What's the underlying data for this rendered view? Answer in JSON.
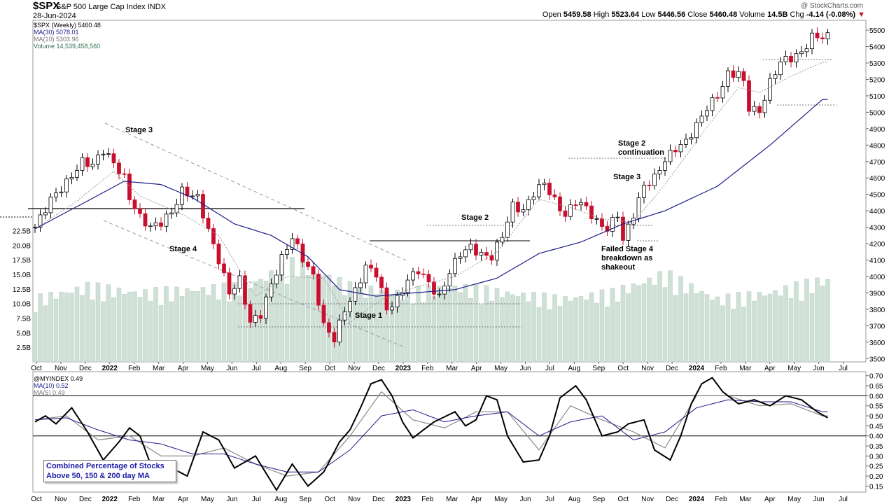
{
  "header": {
    "symbol": "$SPX",
    "name": "S&P 500 Large Cap Index",
    "exchange": "INDX",
    "date": "28-Jun-2024",
    "copyright": "@ StockCharts.com",
    "ohlc": {
      "open_label": "Open",
      "open": "5459.58",
      "high_label": "High",
      "high": "5523.64",
      "low_label": "Low",
      "low": "5446.56",
      "close_label": "Close",
      "close": "5460.48",
      "volume_label": "Volume",
      "volume": "14.5B",
      "chg_label": "Chg",
      "chg": "-4.14 (-0.08%)"
    }
  },
  "legend_main": [
    {
      "text": "$SPX (Weekly) 5460.48",
      "color": "#000000"
    },
    {
      "text": "MA(30) 5078.01",
      "color": "#1c1c8a"
    },
    {
      "text": "MA(10) 5303.96",
      "color": "#777777"
    },
    {
      "text": "Volume 14,539,458,560",
      "color": "#2e6e4e"
    }
  ],
  "legend_lower": [
    {
      "text": "@MYINDEX 0.49",
      "color": "#000000"
    },
    {
      "text": "MA(10) 0.52",
      "color": "#1c1c8a"
    },
    {
      "text": "MA(5) 0.49",
      "color": "#777777"
    }
  ],
  "annotations": [
    {
      "text": "Stage 3"
    },
    {
      "text": "Stage 4"
    },
    {
      "text": "Stage 1"
    },
    {
      "text": "Stage 2"
    },
    {
      "text": "Stage 2\ncontinuation"
    },
    {
      "text": "Stage 3"
    },
    {
      "text": "Failed Stage 4\nbreakdown as\nshakeout"
    }
  ],
  "info_box": "Combined Percentage of Stocks Above 50, 150 & 200 day MA",
  "colors": {
    "up": "#000000",
    "down": "#c8102e",
    "volume": "#cfe0d7",
    "ma30": "#1c1c8a",
    "ma10": "#999999"
  },
  "chart_data": [
    {
      "type": "candlestick",
      "title": "$SPX (Weekly)",
      "ylim": [
        3480,
        5560
      ],
      "yticks": [
        3500,
        3600,
        3700,
        3800,
        3900,
        4000,
        4100,
        4200,
        4300,
        4400,
        4500,
        4600,
        4700,
        4800,
        4900,
        5000,
        5100,
        5200,
        5300,
        5400,
        5500
      ],
      "xticks": [
        "Oct",
        "Nov",
        "Dec",
        "2022",
        "Feb",
        "Mar",
        "Apr",
        "May",
        "Jun",
        "Jul",
        "Aug",
        "Sep",
        "Oct",
        "Nov",
        "Dec",
        "2023",
        "Feb",
        "Mar",
        "Apr",
        "May",
        "Jun",
        "Jul",
        "Aug",
        "Sep",
        "Oct",
        "Nov",
        "Dec",
        "2024",
        "Feb",
        "Mar",
        "Apr",
        "May",
        "Jun",
        "Jul"
      ],
      "volume_ticks": [
        "2.5B",
        "5.0B",
        "7.5B",
        "10.0B",
        "12.5B",
        "15.0B",
        "17.5B",
        "20.0B",
        "22.5B"
      ],
      "volume_ylim_billions": [
        0,
        24
      ],
      "close_keypoints": [
        [
          0,
          4300
        ],
        [
          3,
          4470
        ],
        [
          6,
          4570
        ],
        [
          9,
          4700
        ],
        [
          11,
          4680
        ],
        [
          13,
          4770
        ],
        [
          15,
          4690
        ],
        [
          17,
          4600
        ],
        [
          18,
          4480
        ],
        [
          20,
          4360
        ],
        [
          22,
          4300
        ],
        [
          24,
          4330
        ],
        [
          26,
          4390
        ],
        [
          28,
          4520
        ],
        [
          31,
          4480
        ],
        [
          33,
          4280
        ],
        [
          35,
          4100
        ],
        [
          37,
          3900
        ],
        [
          39,
          3980
        ],
        [
          41,
          3720
        ],
        [
          43,
          3770
        ],
        [
          45,
          3950
        ],
        [
          47,
          4110
        ],
        [
          49,
          4240
        ],
        [
          51,
          4110
        ],
        [
          53,
          4000
        ],
        [
          55,
          3700
        ],
        [
          57,
          3620
        ],
        [
          59,
          3800
        ],
        [
          61,
          3910
        ],
        [
          63,
          4060
        ],
        [
          65,
          4020
        ],
        [
          67,
          3800
        ],
        [
          69,
          3860
        ],
        [
          71,
          3980
        ],
        [
          73,
          4040
        ],
        [
          75,
          3960
        ],
        [
          77,
          3870
        ],
        [
          79,
          4030
        ],
        [
          81,
          4140
        ],
        [
          83,
          4180
        ],
        [
          85,
          4130
        ],
        [
          87,
          4120
        ],
        [
          89,
          4250
        ],
        [
          91,
          4430
        ],
        [
          93,
          4400
        ],
        [
          95,
          4510
        ],
        [
          97,
          4570
        ],
        [
          99,
          4460
        ],
        [
          101,
          4370
        ],
        [
          103,
          4460
        ],
        [
          105,
          4420
        ],
        [
          107,
          4330
        ],
        [
          109,
          4290
        ],
        [
          111,
          4380
        ],
        [
          112,
          4220
        ],
        [
          114,
          4380
        ],
        [
          116,
          4550
        ],
        [
          118,
          4600
        ],
        [
          120,
          4710
        ],
        [
          122,
          4780
        ],
        [
          124,
          4820
        ],
        [
          126,
          4920
        ],
        [
          128,
          5030
        ],
        [
          130,
          5100
        ],
        [
          132,
          5230
        ],
        [
          134,
          5240
        ],
        [
          135,
          5180
        ],
        [
          136,
          5030
        ],
        [
          138,
          5000
        ],
        [
          140,
          5180
        ],
        [
          142,
          5310
        ],
        [
          144,
          5330
        ],
        [
          146,
          5360
        ],
        [
          148,
          5460
        ],
        [
          150,
          5460
        ]
      ],
      "volume_keypoints": [
        [
          0,
          10
        ],
        [
          10,
          12
        ],
        [
          20,
          11
        ],
        [
          40,
          12
        ],
        [
          50,
          16
        ],
        [
          60,
          12
        ],
        [
          70,
          11
        ],
        [
          80,
          12
        ],
        [
          90,
          11
        ],
        [
          100,
          10
        ],
        [
          110,
          11
        ],
        [
          120,
          14
        ],
        [
          130,
          10
        ],
        [
          140,
          11
        ],
        [
          150,
          13
        ]
      ],
      "ma30_keypoints": [
        [
          0,
          4290
        ],
        [
          10,
          4460
        ],
        [
          17,
          4580
        ],
        [
          24,
          4560
        ],
        [
          30,
          4480
        ],
        [
          38,
          4320
        ],
        [
          45,
          4250
        ],
        [
          52,
          4120
        ],
        [
          58,
          3920
        ],
        [
          65,
          3880
        ],
        [
          72,
          3900
        ],
        [
          80,
          3920
        ],
        [
          88,
          3990
        ],
        [
          96,
          4140
        ],
        [
          104,
          4210
        ],
        [
          112,
          4320
        ],
        [
          120,
          4400
        ],
        [
          130,
          4550
        ],
        [
          140,
          4800
        ],
        [
          150,
          5078
        ]
      ],
      "ma10_keypoints": [
        [
          0,
          4290
        ],
        [
          8,
          4460
        ],
        [
          15,
          4640
        ],
        [
          20,
          4490
        ],
        [
          28,
          4380
        ],
        [
          35,
          4250
        ],
        [
          42,
          3880
        ],
        [
          48,
          4000
        ],
        [
          55,
          3990
        ],
        [
          60,
          3720
        ],
        [
          66,
          3860
        ],
        [
          72,
          3930
        ],
        [
          80,
          4000
        ],
        [
          88,
          4150
        ],
        [
          96,
          4470
        ],
        [
          102,
          4420
        ],
        [
          108,
          4350
        ],
        [
          114,
          4330
        ],
        [
          120,
          4560
        ],
        [
          128,
          4910
        ],
        [
          134,
          5150
        ],
        [
          138,
          5120
        ],
        [
          144,
          5220
        ],
        [
          150,
          5304
        ]
      ]
    },
    {
      "type": "line",
      "title": "@MYINDEX",
      "ylim": [
        0.12,
        0.72
      ],
      "yticks": [
        0.15,
        0.2,
        0.25,
        0.3,
        0.35,
        0.4,
        0.45,
        0.5,
        0.55,
        0.6,
        0.65,
        0.7
      ],
      "ref_lines": [
        0.4,
        0.6
      ],
      "series": [
        {
          "name": "@MYINDEX",
          "color": "#000000",
          "keypoints": [
            [
              0,
              0.47
            ],
            [
              2,
              0.5
            ],
            [
              4,
              0.46
            ],
            [
              7,
              0.54
            ],
            [
              10,
              0.42
            ],
            [
              13,
              0.28
            ],
            [
              16,
              0.37
            ],
            [
              18,
              0.44
            ],
            [
              20,
              0.4
            ],
            [
              23,
              0.19
            ],
            [
              26,
              0.24
            ],
            [
              29,
              0.2
            ],
            [
              32,
              0.42
            ],
            [
              35,
              0.38
            ],
            [
              38,
              0.24
            ],
            [
              42,
              0.3
            ],
            [
              46,
              0.13
            ],
            [
              49,
              0.26
            ],
            [
              52,
              0.15
            ],
            [
              55,
              0.22
            ],
            [
              58,
              0.37
            ],
            [
              60,
              0.43
            ],
            [
              62,
              0.54
            ],
            [
              64,
              0.66
            ],
            [
              66,
              0.68
            ],
            [
              68,
              0.6
            ],
            [
              70,
              0.47
            ],
            [
              72,
              0.39
            ],
            [
              74,
              0.43
            ],
            [
              76,
              0.47
            ],
            [
              80,
              0.52
            ],
            [
              82,
              0.45
            ],
            [
              84,
              0.48
            ],
            [
              86,
              0.6
            ],
            [
              88,
              0.58
            ],
            [
              90,
              0.4
            ],
            [
              93,
              0.27
            ],
            [
              96,
              0.28
            ],
            [
              98,
              0.4
            ],
            [
              100,
              0.59
            ],
            [
              103,
              0.65
            ],
            [
              105,
              0.58
            ],
            [
              108,
              0.4
            ],
            [
              111,
              0.42
            ],
            [
              113,
              0.46
            ],
            [
              116,
              0.48
            ],
            [
              118,
              0.33
            ],
            [
              121,
              0.28
            ],
            [
              123,
              0.4
            ],
            [
              125,
              0.56
            ],
            [
              127,
              0.66
            ],
            [
              129,
              0.69
            ],
            [
              131,
              0.62
            ],
            [
              134,
              0.56
            ],
            [
              137,
              0.58
            ],
            [
              140,
              0.55
            ],
            [
              143,
              0.6
            ],
            [
              146,
              0.58
            ],
            [
              149,
              0.52
            ],
            [
              151,
              0.49
            ]
          ]
        },
        {
          "name": "MA(10)",
          "color": "#1c1c8a",
          "keypoints": [
            [
              0,
              0.48
            ],
            [
              6,
              0.49
            ],
            [
              12,
              0.43
            ],
            [
              18,
              0.38
            ],
            [
              24,
              0.36
            ],
            [
              30,
              0.31
            ],
            [
              36,
              0.31
            ],
            [
              42,
              0.26
            ],
            [
              48,
              0.22
            ],
            [
              54,
              0.22
            ],
            [
              60,
              0.33
            ],
            [
              66,
              0.5
            ],
            [
              72,
              0.53
            ],
            [
              78,
              0.47
            ],
            [
              84,
              0.5
            ],
            [
              90,
              0.52
            ],
            [
              96,
              0.4
            ],
            [
              102,
              0.47
            ],
            [
              108,
              0.5
            ],
            [
              114,
              0.38
            ],
            [
              120,
              0.42
            ],
            [
              126,
              0.54
            ],
            [
              132,
              0.58
            ],
            [
              138,
              0.57
            ],
            [
              144,
              0.57
            ],
            [
              150,
              0.52
            ]
          ]
        },
        {
          "name": "MA(5)",
          "color": "#888888",
          "keypoints": [
            [
              0,
              0.48
            ],
            [
              6,
              0.5
            ],
            [
              12,
              0.38
            ],
            [
              18,
              0.4
            ],
            [
              24,
              0.3
            ],
            [
              30,
              0.3
            ],
            [
              36,
              0.34
            ],
            [
              42,
              0.26
            ],
            [
              48,
              0.2
            ],
            [
              54,
              0.22
            ],
            [
              60,
              0.4
            ],
            [
              66,
              0.62
            ],
            [
              72,
              0.48
            ],
            [
              78,
              0.44
            ],
            [
              84,
              0.52
            ],
            [
              90,
              0.52
            ],
            [
              96,
              0.33
            ],
            [
              102,
              0.55
            ],
            [
              108,
              0.48
            ],
            [
              114,
              0.42
            ],
            [
              120,
              0.34
            ],
            [
              126,
              0.6
            ],
            [
              132,
              0.6
            ],
            [
              138,
              0.55
            ],
            [
              144,
              0.56
            ],
            [
              150,
              0.5
            ]
          ]
        }
      ]
    }
  ]
}
